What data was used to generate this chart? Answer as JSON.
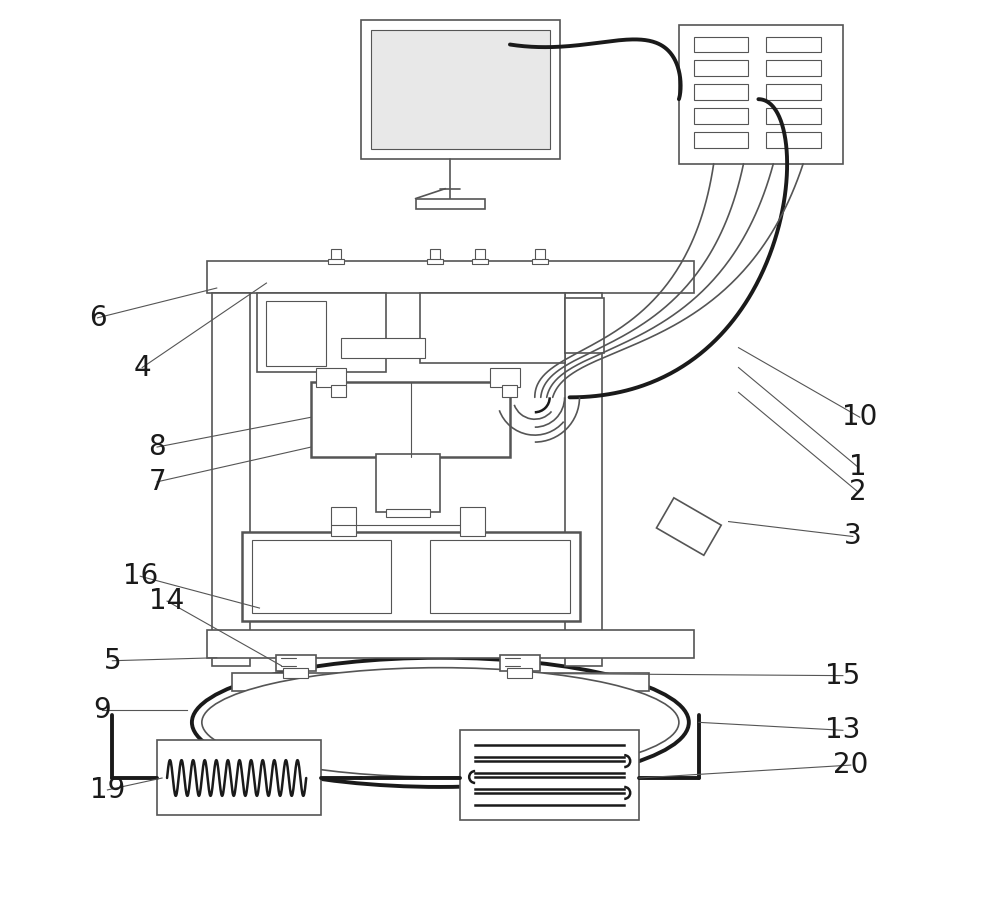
{
  "bg_color": "#ffffff",
  "line_color": "#1a1a1a",
  "gray_stroke": "#555555",
  "fig_width": 10.0,
  "fig_height": 9.07,
  "dpi": 100
}
